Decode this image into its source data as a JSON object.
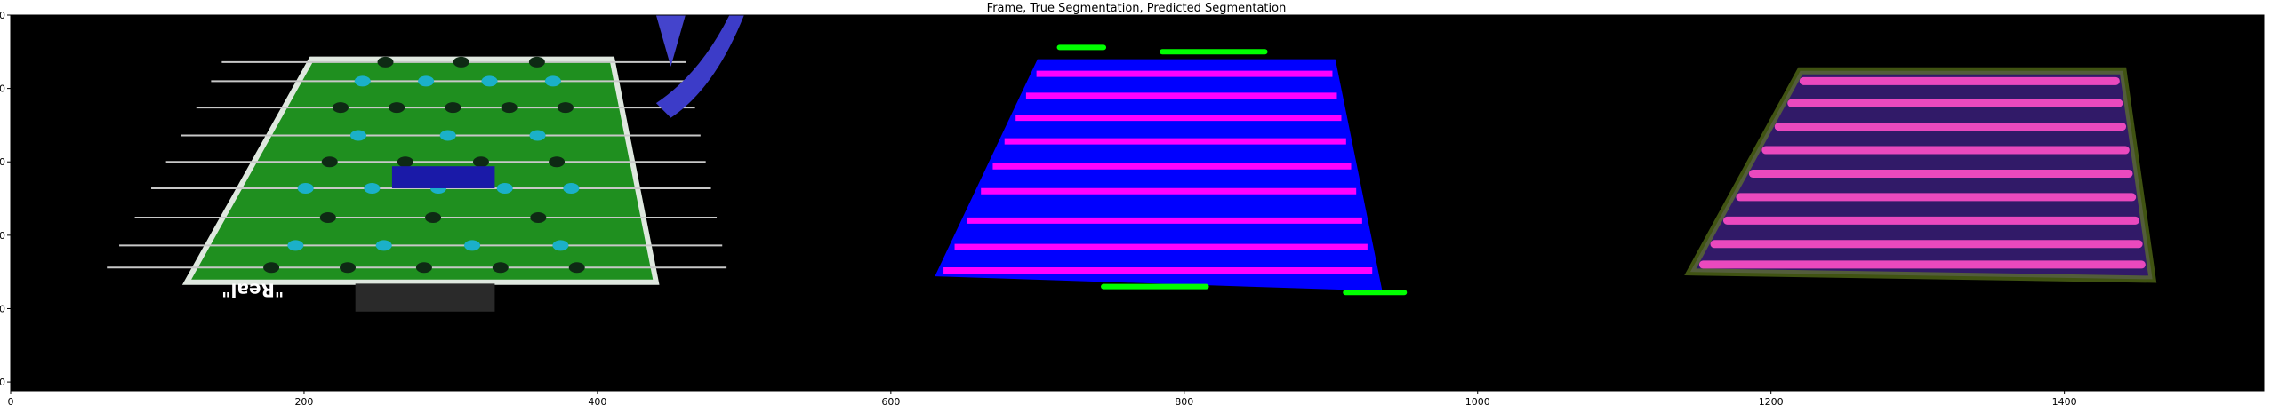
{
  "chart_data": {
    "type": "image",
    "title": "Frame, True Segmentation, Predicted Segmentation",
    "xlabel": "",
    "ylabel": "",
    "xlim": [
      0,
      1536
    ],
    "ylim": [
      256,
      0
    ],
    "xticks": [
      0,
      200,
      400,
      600,
      800,
      1000,
      1200,
      1400
    ],
    "yticks": [
      0,
      50,
      100,
      150,
      200,
      250
    ],
    "grid": false,
    "panels": [
      {
        "name": "frame",
        "x_range": [
          0,
          512
        ],
        "table": {
          "corners": [
            [
              205,
              30
            ],
            [
              410,
              30
            ],
            [
              440,
              182
            ],
            [
              120,
              182
            ]
          ],
          "color": "#1f8f1f",
          "edge_color": "#dfe8df"
        },
        "rod_rows_y": [
          32,
          45,
          63,
          82,
          100,
          118,
          138,
          157,
          172
        ],
        "player_color": "#1bb0c9",
        "logo_text": "\"Real\""
      },
      {
        "name": "true-segmentation",
        "x_range": [
          512,
          1024
        ],
        "table": {
          "corners": [
            [
              700,
              30
            ],
            [
              903,
              30
            ],
            [
              935,
              188
            ],
            [
              630,
              178
            ]
          ],
          "color": "#0000ff"
        },
        "stripe_color": "#ff00ff",
        "stripe_rows_y": [
          40,
          55,
          70,
          86,
          103,
          120,
          140,
          158,
          174
        ],
        "marker_color": "#00ff00",
        "markers": [
          [
            715,
            22,
            30
          ],
          [
            785,
            25,
            70
          ],
          [
            745,
            185,
            70
          ],
          [
            910,
            189,
            40
          ]
        ]
      },
      {
        "name": "predicted-segmentation",
        "x_range": [
          1024,
          1536
        ],
        "table": {
          "corners": [
            [
              1220,
              38
            ],
            [
              1440,
              38
            ],
            [
              1460,
              180
            ],
            [
              1145,
              175
            ]
          ],
          "color": "#3a1f7a"
        },
        "stripe_color": "#ff4fc8",
        "stripe_rows_y": [
          45,
          60,
          76,
          92,
          108,
          124,
          140,
          156,
          170
        ]
      }
    ]
  }
}
